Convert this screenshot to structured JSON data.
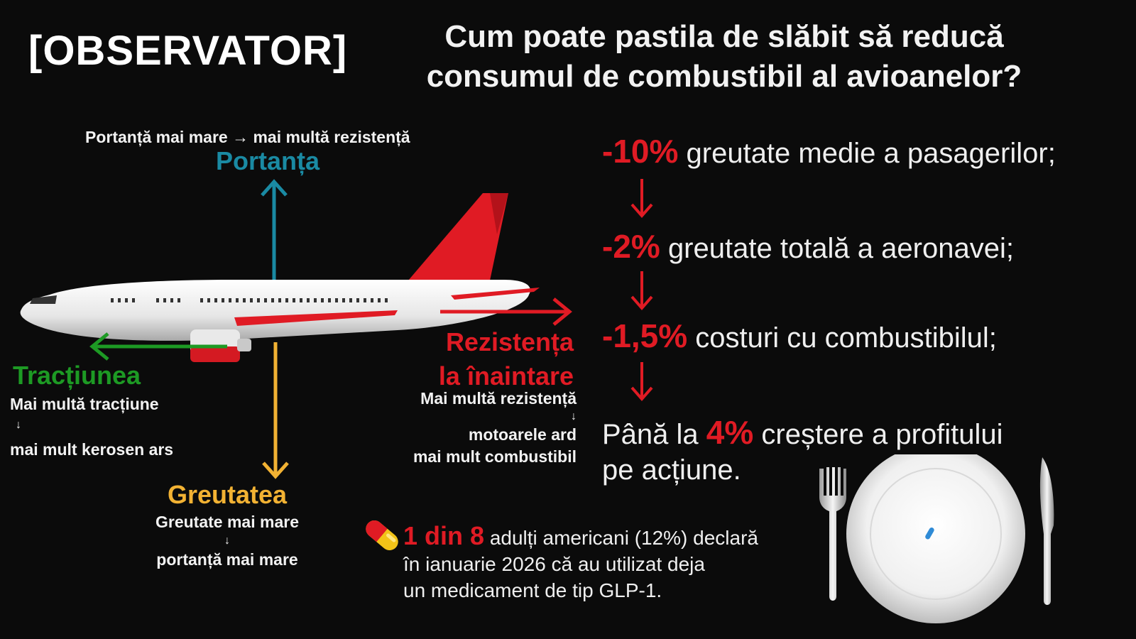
{
  "header": {
    "logo": "[OBSERVATOR]",
    "title_line1": "Cum poate pastila de slăbit să reducă",
    "title_line2": "consumul de combustibil al avioanelor?"
  },
  "diagram": {
    "lift": {
      "note": "Portanță mai mare → mai multă rezistență",
      "title": "Portanța",
      "color": "#1a8aa3"
    },
    "thrust": {
      "title": "Tracțiunea",
      "line1": "Mai multă tracțiune",
      "arrow": "↓",
      "line2": "mai mult kerosen ars",
      "color": "#1d9a24"
    },
    "drag": {
      "title_line1": "Rezistența",
      "title_line2": "la înaintare",
      "line1": "Mai multă rezistență",
      "arrow": "↓",
      "line2": "motoarele ard",
      "line3": "mai mult combustibil",
      "color": "#e01b24"
    },
    "weight": {
      "title": "Greutatea",
      "line1": "Greutate mai mare",
      "arrow": "↓",
      "line2": "portanță mai mare",
      "color": "#f2b233"
    }
  },
  "stats": [
    {
      "pct": "-10%",
      "text": "greutate medie a pasagerilor;"
    },
    {
      "pct": "-2%",
      "text": "greutate totală a aeronavei;"
    },
    {
      "pct": "-1,5%",
      "text": "costuri cu combustibilul;"
    }
  ],
  "profit": {
    "prefix": "Până la",
    "pct": "4%",
    "suffix": "creștere a profitului",
    "line2": "pe acțiune."
  },
  "glp": {
    "highlight": "1 din 8",
    "line1_rest": "adulți americani (12%) declară",
    "line2": "în ianuarie 2026 că au utilizat deja",
    "line3": "un medicament de tip GLP-1."
  },
  "colors": {
    "accent_red": "#e01b24",
    "background": "#0b0b0b"
  },
  "icons": [
    "airplane-icon",
    "pill-icon",
    "plate-icon",
    "fork-icon",
    "knife-icon",
    "pill-on-plate-icon"
  ]
}
